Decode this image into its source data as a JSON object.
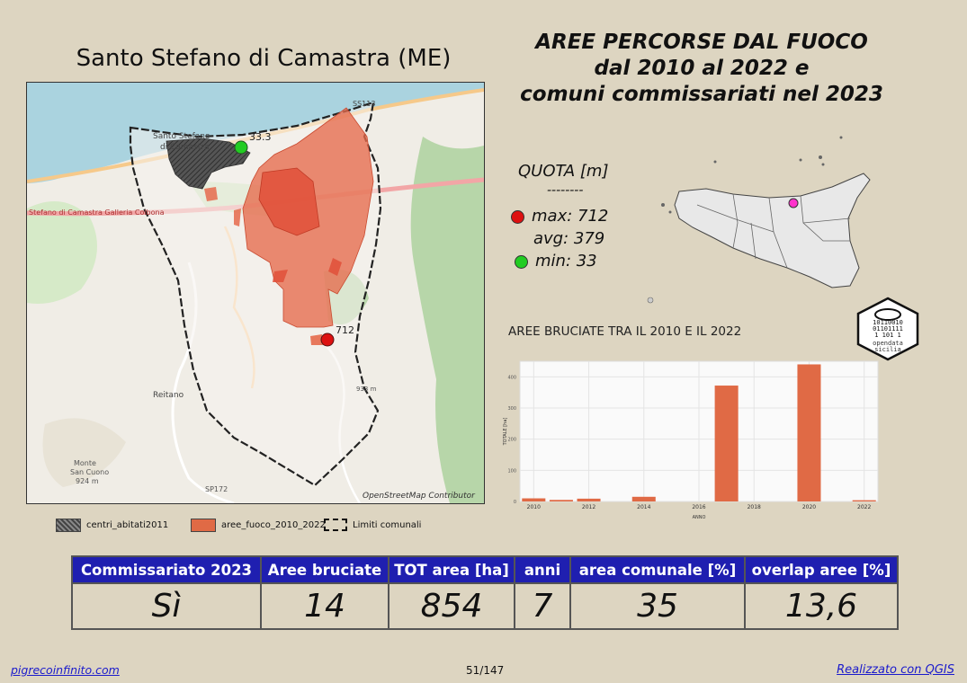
{
  "map_title": "Santo Stefano di Camastra (ME)",
  "main_title": [
    "AREE PERCORSE DAL FUOCO",
    "dal 2010 al 2022 e",
    "comuni commissariati nel 2023"
  ],
  "map": {
    "labels": {
      "town": [
        "Santo Stefano",
        "di Camastra"
      ],
      "road_ss113": "SS113",
      "road_a20": "Stefano di Camastra Galleria Colbona",
      "reitano": "Reitano",
      "monte": [
        "Monte",
        "San Cuono",
        "924 m"
      ],
      "sp172": "SP172",
      "peak": "933 m",
      "attribution": "OpenStreetMap Contributor"
    },
    "min_marker_label": "33.3",
    "max_marker_label": "712"
  },
  "quota": {
    "title": "QUOTA [m]",
    "sep": "--------",
    "max": "max: 712",
    "avg": "avg: 379",
    "min": "min: 33",
    "max_color": "#dd1111",
    "min_color": "#22cc22"
  },
  "chart_title": "AREE BRUCIATE TRA IL 2010 E IL 2022",
  "chart_data": {
    "type": "bar",
    "x": [
      2010,
      2011,
      2012,
      2014,
      2017,
      2020,
      2022
    ],
    "values": [
      10,
      5,
      9,
      15,
      372,
      440,
      4
    ],
    "xticks": [
      2010,
      2012,
      2014,
      2016,
      2018,
      2020,
      2022
    ],
    "yticks": [
      0,
      100,
      200,
      300,
      400
    ],
    "xlabel": "ANNO",
    "ylabel": "TOTALE [ha]",
    "xlim": [
      2009.5,
      2022.5
    ],
    "ylim": [
      0,
      450
    ],
    "bar_color": "#e06a45"
  },
  "logo": {
    "lines": [
      "10110010",
      "01101111",
      "1  101  1"
    ],
    "name": [
      "opendata",
      "sicilia"
    ]
  },
  "legend": [
    {
      "label": "centri_abitati2011",
      "icon": "hatched-grey-swatch"
    },
    {
      "label": "aree_fuoco_2010_2022",
      "icon": "orange-swatch"
    },
    {
      "label": "Limiti comunali",
      "icon": "dashed-boundary-swatch"
    }
  ],
  "table": {
    "headers": [
      "Commissariato 2023",
      "Aree bruciate",
      "TOT area [ha]",
      "anni",
      "area comunale [%]",
      "overlap aree [%]"
    ],
    "values": [
      "Sì",
      "14",
      "854",
      "7",
      "35",
      "13,6"
    ]
  },
  "footer": {
    "left": "pigrecoinfinito.com",
    "center": "51/147",
    "right": "Realizzato con QGIS"
  }
}
